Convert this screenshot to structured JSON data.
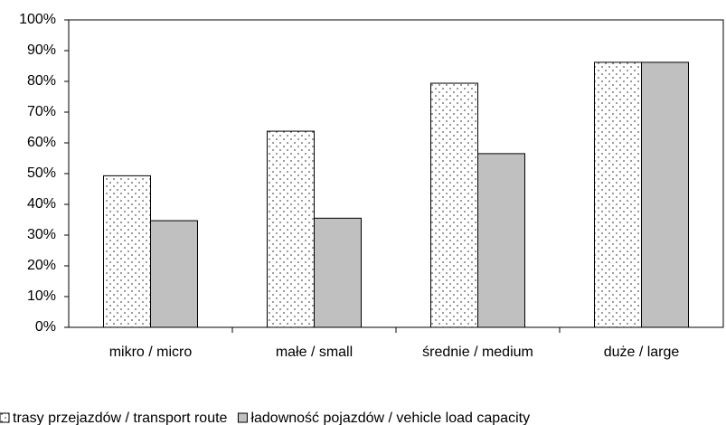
{
  "chart_data": {
    "type": "bar",
    "categories": [
      "mikro / micro",
      "małe / small",
      "średnie / medium",
      "duże / large"
    ],
    "series": [
      {
        "name": "trasy przejazdów / transport route",
        "color": "#ffffff",
        "pattern": "dots",
        "values": [
          49.3,
          63.8,
          79.4,
          86.2
        ]
      },
      {
        "name": "ładowność pojazdów / vehicle load capacity",
        "color": "#c0c0c0",
        "values": [
          34.7,
          35.5,
          56.5,
          86.2
        ]
      }
    ],
    "ylim": [
      0,
      100
    ],
    "yticks": [
      {
        "value": 0,
        "label": "0%"
      },
      {
        "value": 10,
        "label": "10%"
      },
      {
        "value": 20,
        "label": "20%"
      },
      {
        "value": 30,
        "label": "30%"
      },
      {
        "value": 40,
        "label": "40%"
      },
      {
        "value": 50,
        "label": "50%"
      },
      {
        "value": 60,
        "label": "60%"
      },
      {
        "value": 70,
        "label": "70%"
      },
      {
        "value": 80,
        "label": "80%"
      },
      {
        "value": 90,
        "label": "90%"
      },
      {
        "value": 100,
        "label": "100%"
      }
    ],
    "grid": false,
    "legend": "bottom"
  }
}
